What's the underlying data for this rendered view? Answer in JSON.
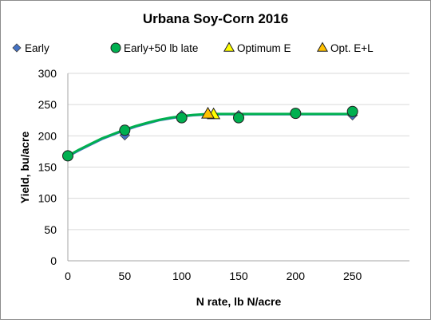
{
  "chart_data": {
    "type": "scatter",
    "title": "Urbana Soy-Corn 2016",
    "xlabel": "N rate, lb N/acre",
    "ylabel": "Yield, bu/acre",
    "xlim": [
      0,
      300
    ],
    "ylim": [
      0,
      300
    ],
    "x_ticks": [
      0,
      50,
      100,
      150,
      200,
      250
    ],
    "y_ticks": [
      0,
      50,
      100,
      150,
      200,
      250,
      300
    ],
    "x_tick_labels": [
      "0",
      "50",
      "100",
      "150",
      "200",
      "250"
    ],
    "y_tick_labels": [
      "0",
      "50",
      "100",
      "150",
      "200",
      "250",
      "300"
    ],
    "grid": "horizontal",
    "legend_position": "top",
    "series": [
      {
        "name": "Early",
        "marker": "diamond",
        "color": "#4472C4",
        "x": [
          0,
          50,
          100,
          150,
          200,
          250
        ],
        "y": [
          169,
          201,
          233,
          233,
          236,
          233
        ]
      },
      {
        "name": "Early+50 lb late",
        "marker": "circle",
        "color": "#00B050",
        "x": [
          0,
          50,
          100,
          150,
          200,
          250
        ],
        "y": [
          168,
          209,
          229,
          229,
          236,
          239
        ]
      },
      {
        "name": "Optimum E",
        "marker": "triangle",
        "color": "#FFFF00",
        "x": [
          128
        ],
        "y": [
          234
        ]
      },
      {
        "name": "Opt. E+L",
        "marker": "triangle",
        "color": "#FFC000",
        "x": [
          123
        ],
        "y": [
          235
        ]
      }
    ],
    "curves": [
      {
        "color": "#4472C4",
        "x": [
          0,
          10,
          20,
          30,
          40,
          50,
          60,
          70,
          80,
          90,
          100,
          110,
          120,
          128,
          150,
          200,
          250
        ],
        "y": [
          167,
          177,
          186,
          195,
          202,
          209,
          215,
          220,
          225,
          228,
          231,
          233,
          234,
          234.5,
          234.5,
          234.5,
          234.5
        ]
      },
      {
        "color": "#00B050",
        "x": [
          0,
          10,
          20,
          30,
          40,
          50,
          60,
          70,
          80,
          90,
          100,
          110,
          123,
          150,
          200,
          250
        ],
        "y": [
          168,
          178,
          187,
          196,
          203,
          210,
          216,
          221,
          225.5,
          229,
          231.5,
          233.5,
          235,
          235,
          235,
          235
        ]
      }
    ]
  }
}
